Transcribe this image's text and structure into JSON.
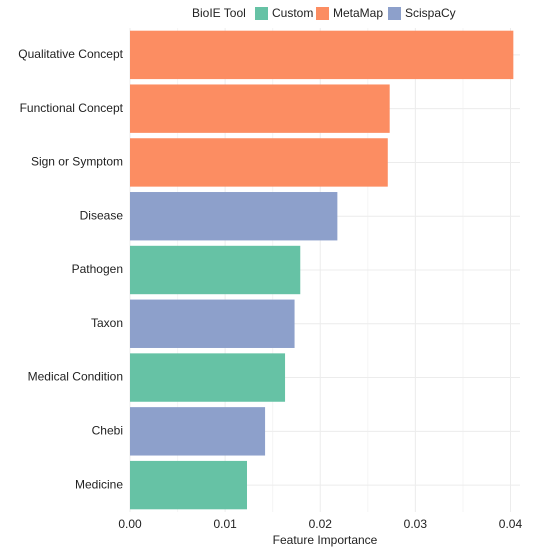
{
  "chart_data": {
    "type": "bar",
    "orientation": "horizontal",
    "title": "",
    "xlabel": "Feature Importance",
    "ylabel": "",
    "xlim": [
      0,
      0.041
    ],
    "x_ticks": [
      0,
      0.01,
      0.02,
      0.03,
      0.04
    ],
    "x_tick_labels": [
      "0.00",
      "0.01",
      "0.02",
      "0.03",
      "0.04"
    ],
    "grid": true,
    "legend_position": "top",
    "legend_title": "BioIE Tool",
    "legend": [
      {
        "name": "Custom",
        "color": "#66c2a5"
      },
      {
        "name": "MetaMap",
        "color": "#fc8d62"
      },
      {
        "name": "ScispaCy",
        "color": "#8da0cb"
      }
    ],
    "categories": [
      "Qualitative Concept",
      "Functional Concept",
      "Sign or Symptom",
      "Disease",
      "Pathogen",
      "Taxon",
      "Medical Condition",
      "Chebi",
      "Medicine"
    ],
    "values": [
      0.0403,
      0.0273,
      0.0271,
      0.0218,
      0.0179,
      0.0173,
      0.0163,
      0.0142,
      0.0123
    ],
    "series_by_category": [
      "MetaMap",
      "MetaMap",
      "MetaMap",
      "ScispaCy",
      "Custom",
      "ScispaCy",
      "Custom",
      "ScispaCy",
      "Custom"
    ]
  }
}
